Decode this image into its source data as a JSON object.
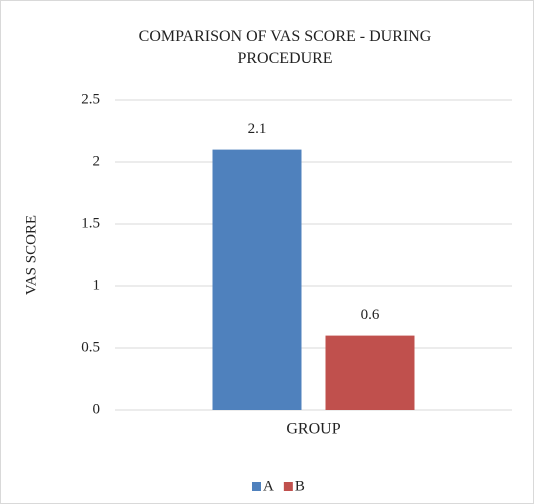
{
  "chart_data": {
    "type": "bar",
    "title": "COMPARISON OF VAS SCORE - DURING PROCEDURE",
    "y_label": "VAS SCORE",
    "categories": [
      "GROUP"
    ],
    "series": [
      {
        "name": "A",
        "color": "#4f81bd",
        "values": [
          2.1
        ]
      },
      {
        "name": "B",
        "color": "#c0504d",
        "values": [
          0.6
        ]
      }
    ],
    "ylim": [
      0,
      2.5
    ],
    "yticks": [
      0,
      0.5,
      1,
      1.5,
      2,
      2.5
    ],
    "grid": true,
    "legend": "bottom"
  }
}
